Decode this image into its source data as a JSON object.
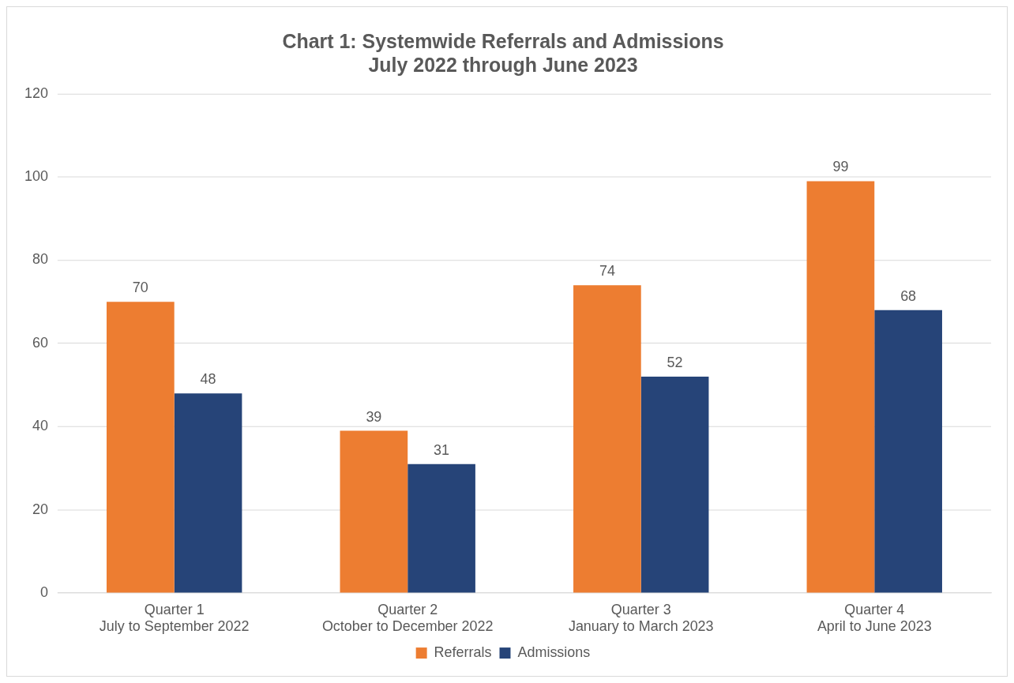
{
  "chart_data": {
    "type": "bar",
    "title": "Chart 1: Systemwide Referrals and Admissions",
    "subtitle": "July 2022 through June 2023",
    "categories": [
      "Quarter 1\nJuly to September 2022",
      "Quarter 2\nOctober to December 2022",
      "Quarter 3\nJanuary to March 2023",
      "Quarter 4\nApril to June 2023"
    ],
    "series": [
      {
        "name": "Referrals",
        "color": "#ed7d31",
        "values": [
          70,
          39,
          74,
          99
        ]
      },
      {
        "name": "Admissions",
        "color": "#264478",
        "values": [
          48,
          31,
          52,
          68
        ]
      }
    ],
    "ylim": [
      0,
      120
    ],
    "yticks": [
      0,
      20,
      40,
      60,
      80,
      100,
      120
    ],
    "grid": "y",
    "legend": "bottom",
    "data_labels": true
  }
}
